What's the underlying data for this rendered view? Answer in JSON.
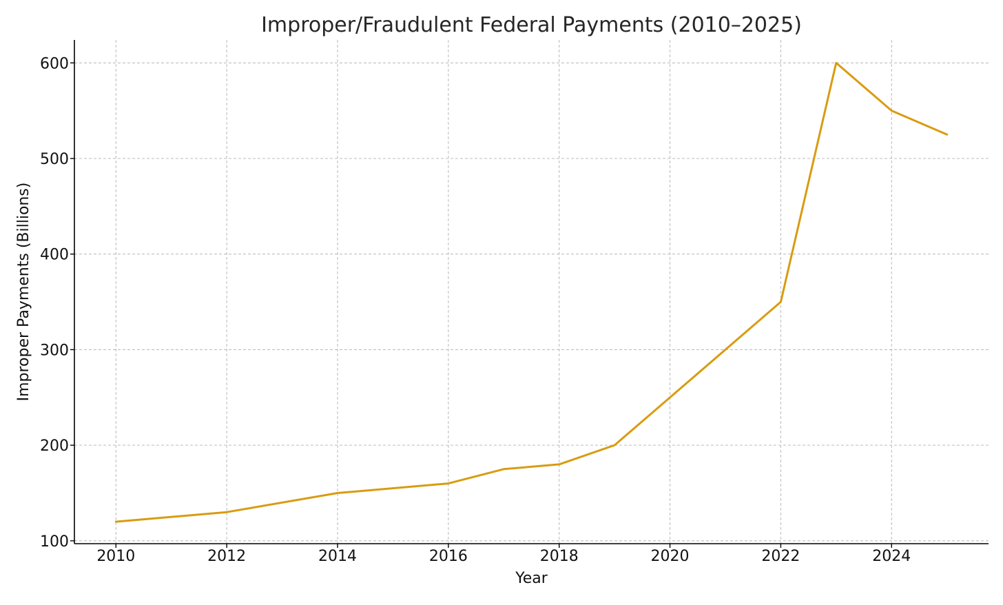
{
  "chart_data": {
    "type": "line",
    "title": "Improper/Fraudulent Federal Payments (2010–2025)",
    "xlabel": "Year",
    "ylabel": "Improper Payments (Billions)",
    "xlim": [
      2009.25,
      2025.75
    ],
    "ylim": [
      97,
      624
    ],
    "x_ticks": [
      2010,
      2012,
      2014,
      2016,
      2018,
      2020,
      2022,
      2024
    ],
    "y_ticks": [
      100,
      200,
      300,
      400,
      500,
      600
    ],
    "grid": true,
    "legend": "none",
    "series": [
      {
        "color": "#d99b10",
        "x": [
          2010,
          2012,
          2014,
          2016,
          2017,
          2018,
          2019,
          2020,
          2022,
          2023,
          2024,
          2025
        ],
        "y": [
          120,
          130,
          150,
          160,
          175,
          180,
          200,
          250,
          350,
          600,
          550,
          525
        ]
      }
    ]
  }
}
